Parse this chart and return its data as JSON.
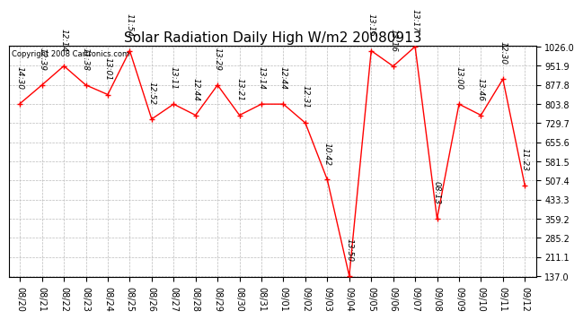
{
  "title": "Solar Radiation Daily High W/m2 20080913",
  "copyright": "Copyright 2008 Cartronics.com",
  "dates": [
    "08/20",
    "08/21",
    "08/22",
    "08/23",
    "08/24",
    "08/25",
    "08/26",
    "08/27",
    "08/28",
    "08/29",
    "08/30",
    "08/31",
    "09/01",
    "09/02",
    "09/03",
    "09/04",
    "09/05",
    "09/06",
    "09/07",
    "09/08",
    "09/09",
    "09/10",
    "09/11",
    "09/12"
  ],
  "values": [
    805,
    877,
    951,
    877,
    840,
    1010,
    745,
    803,
    760,
    877,
    760,
    803,
    803,
    730,
    510,
    137,
    1010,
    950,
    1026,
    359,
    803,
    760,
    900,
    487
  ],
  "times": [
    "14:30",
    "12:39",
    "12:14",
    "11:38",
    "13:01",
    "11:54",
    "12:52",
    "13:11",
    "12:44",
    "13:29",
    "13:21",
    "13:14",
    "12:44",
    "12:31",
    "10:42",
    "13:50",
    "13:15",
    "13:16",
    "13:17",
    "08:13",
    "13:00",
    "13:46",
    "12:30",
    "11:23"
  ],
  "line_color": "#ff0000",
  "marker_color": "#ff0000",
  "bg_color": "#ffffff",
  "grid_color": "#bbbbbb",
  "title_fontsize": 11,
  "tick_fontsize": 7,
  "time_fontsize": 6.5,
  "copyright_fontsize": 6,
  "ylim_min": 137.0,
  "ylim_max": 1026.0,
  "yticks": [
    137.0,
    211.1,
    285.2,
    359.2,
    433.3,
    507.4,
    581.5,
    655.6,
    729.7,
    803.8,
    877.8,
    951.9,
    1026.0
  ]
}
